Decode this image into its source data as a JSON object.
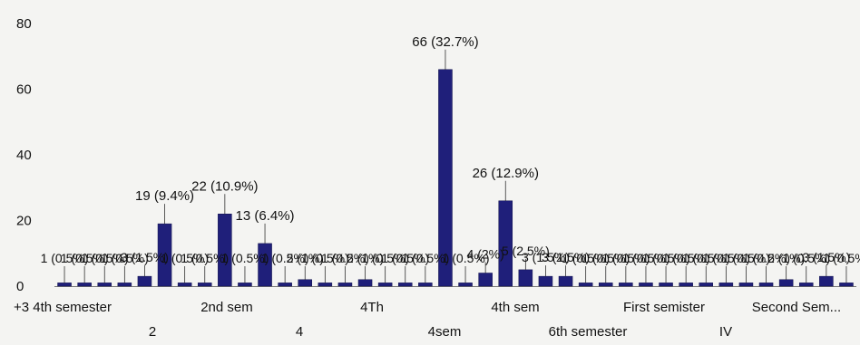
{
  "chart_data": {
    "type": "bar",
    "title": "",
    "xlabel": "",
    "ylabel": "",
    "ylim": [
      0,
      80
    ],
    "yticks": [
      0,
      20,
      40,
      60,
      80
    ],
    "grid": false,
    "bar_color": "#1f1f7a",
    "values": [
      1,
      1,
      1,
      1,
      3,
      19,
      1,
      1,
      22,
      1,
      13,
      1,
      2,
      1,
      1,
      2,
      1,
      1,
      1,
      66,
      1,
      4,
      26,
      5,
      3,
      3,
      1,
      1,
      1,
      1,
      1,
      1,
      1,
      1,
      1,
      1,
      2,
      1,
      3,
      1
    ],
    "labels": [
      "1 (0.5%)",
      "1 (0.5%)",
      "1 (0.5%)",
      "1 (0.5%)",
      "3 (1.5%)",
      "19 (9.4%)",
      "1 (0.5%)",
      "1 (0.5%)",
      "22 (10.9%)",
      "1 (0.5%)",
      "13 (6.4%)",
      "1 (0.5%)",
      "2 (1%)",
      "1 (0.5%)",
      "1 (0.5%)",
      "2 (1%)",
      "1 (0.5%)",
      "1 (0.5%)",
      "1 (0.5%)",
      "66 (32.7%)",
      "1 (0.5%)",
      "4 (2%)",
      "26 (12.9%)",
      "5 (2.5%)",
      "3 (1.5%)",
      "3 (1.5%)",
      "1 (0.5%)",
      "1 (0.5%)",
      "1 (0.5%)",
      "1 (0.5%)",
      "1 (0.5%)",
      "1 (0.5%)",
      "1 (0.5%)",
      "1 (0.5%)",
      "1 (0.5%)",
      "1 (0.5%)",
      "2 (1%)",
      "1 (0.5%)",
      "3 (1.5%)",
      "1 (0.5%)"
    ],
    "category_labels_row1": [
      "+3 4th semester",
      "2nd sem",
      "4Th",
      "4th sem",
      "First semister",
      "Second Sem..."
    ],
    "category_labels_row2": [
      "2",
      "4",
      "4sem",
      "6th semester",
      "IV"
    ]
  }
}
